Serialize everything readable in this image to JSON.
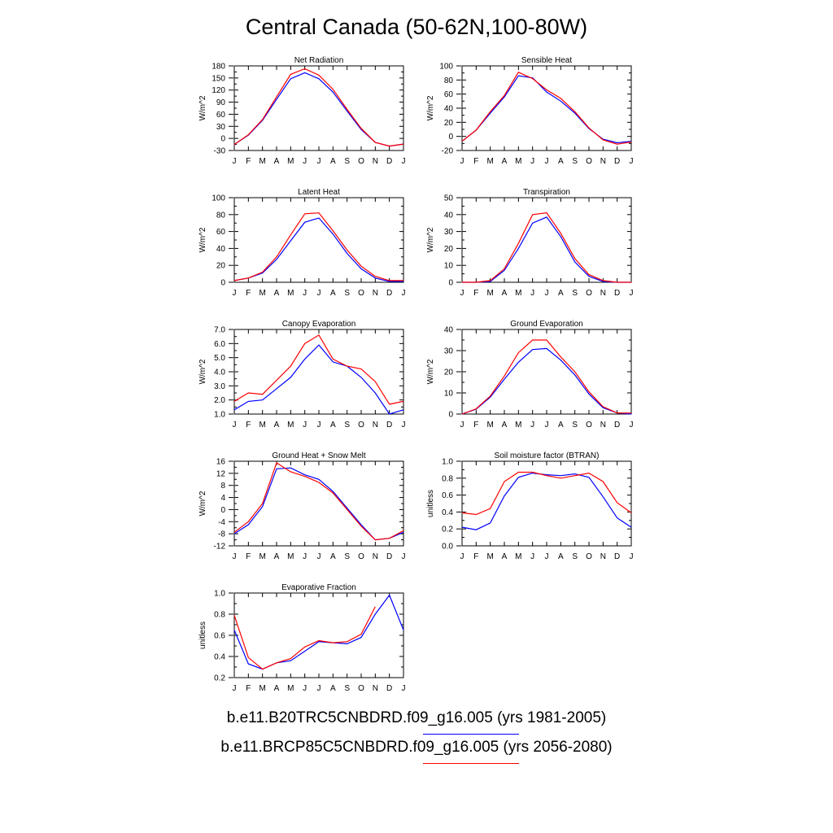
{
  "title": "Central Canada (50-62N,100-80W)",
  "colors": {
    "series_a": "#0000ff",
    "series_b": "#ff0000"
  },
  "legend": [
    {
      "label": "b.e11.B20TRC5CNBDRD.f09_g16.005 (yrs 1981-2005)",
      "color": "#0000ff"
    },
    {
      "label": "b.e11.BRCP85C5CNBDRD.f09_g16.005 (yrs 2056-2080)",
      "color": "#ff0000"
    }
  ],
  "chart_data": [
    {
      "type": "line",
      "title": "Net Radiation",
      "ylabel": "W/m^2",
      "x": [
        "J",
        "F",
        "M",
        "A",
        "M",
        "J",
        "J",
        "A",
        "S",
        "O",
        "N",
        "D",
        "J"
      ],
      "ylim": [
        -30,
        180
      ],
      "yticks": [
        -30,
        0,
        30,
        60,
        90,
        120,
        150,
        180
      ],
      "ytick_labels": [
        "-30",
        "0",
        "30",
        "60",
        "90",
        "120",
        "150",
        "180"
      ],
      "series": [
        {
          "color": "#0000ff",
          "values": [
            -15,
            8,
            45,
            97,
            148,
            163,
            148,
            115,
            68,
            22,
            -10,
            -19,
            -14
          ]
        },
        {
          "color": "#ff0000",
          "values": [
            -15,
            9,
            47,
            103,
            159,
            173,
            157,
            122,
            72,
            25,
            -10,
            -19,
            -14
          ]
        }
      ]
    },
    {
      "type": "line",
      "title": "Sensible Heat",
      "ylabel": "W/m^2",
      "x": [
        "J",
        "F",
        "M",
        "A",
        "M",
        "J",
        "J",
        "A",
        "S",
        "O",
        "N",
        "D",
        "J"
      ],
      "ylim": [
        -20,
        100
      ],
      "yticks": [
        -20,
        0,
        20,
        40,
        60,
        80,
        100
      ],
      "ytick_labels": [
        "-20",
        "0",
        "20",
        "40",
        "60",
        "80",
        "100"
      ],
      "series": [
        {
          "color": "#0000ff",
          "values": [
            -7,
            9,
            33,
            56,
            86,
            83,
            63,
            50,
            33,
            11,
            -4,
            -9,
            -7
          ]
        },
        {
          "color": "#ff0000",
          "values": [
            -7,
            9,
            35,
            58,
            91,
            82,
            66,
            54,
            35,
            12,
            -5,
            -11,
            -8
          ]
        }
      ]
    },
    {
      "type": "line",
      "title": "Latent Heat",
      "ylabel": "W/m^2",
      "x": [
        "J",
        "F",
        "M",
        "A",
        "M",
        "J",
        "J",
        "A",
        "S",
        "O",
        "N",
        "D",
        "J"
      ],
      "ylim": [
        0,
        100
      ],
      "yticks": [
        0,
        20,
        40,
        60,
        80,
        100
      ],
      "ytick_labels": [
        "0",
        "20",
        "40",
        "60",
        "80",
        "100"
      ],
      "series": [
        {
          "color": "#0000ff",
          "values": [
            2,
            5,
            11,
            27,
            49,
            71,
            76,
            57,
            34,
            16,
            5,
            1,
            1
          ]
        },
        {
          "color": "#ff0000",
          "values": [
            2,
            5,
            12,
            30,
            56,
            81,
            82,
            61,
            38,
            19,
            7,
            2,
            2
          ]
        }
      ]
    },
    {
      "type": "line",
      "title": "Transpiration",
      "ylabel": "W/m^2",
      "x": [
        "J",
        "F",
        "M",
        "A",
        "M",
        "J",
        "J",
        "A",
        "S",
        "O",
        "N",
        "D",
        "J"
      ],
      "ylim": [
        0,
        50
      ],
      "yticks": [
        0,
        10,
        20,
        30,
        40,
        50
      ],
      "ytick_labels": [
        "0",
        "10",
        "20",
        "30",
        "40",
        "50"
      ],
      "series": [
        {
          "color": "#0000ff",
          "values": [
            0,
            0,
            0.5,
            7,
            20,
            35,
            38.5,
            27,
            12,
            3.5,
            0.5,
            0,
            0
          ]
        },
        {
          "color": "#ff0000",
          "values": [
            0,
            0,
            1,
            8,
            23,
            40,
            41,
            29,
            14,
            4.5,
            1,
            0,
            0
          ]
        }
      ]
    },
    {
      "type": "line",
      "title": "Canopy Evaporation",
      "ylabel": "W/m^2",
      "x": [
        "J",
        "F",
        "M",
        "A",
        "M",
        "J",
        "J",
        "A",
        "S",
        "O",
        "N",
        "D",
        "J"
      ],
      "ylim": [
        1.0,
        7.0
      ],
      "yticks": [
        1.0,
        2.0,
        3.0,
        4.0,
        5.0,
        6.0,
        7.0
      ],
      "ytick_labels": [
        "1.0",
        "2.0",
        "3.0",
        "4.0",
        "5.0",
        "6.0",
        "7.0"
      ],
      "series": [
        {
          "color": "#0000ff",
          "values": [
            1.3,
            1.9,
            2.0,
            2.8,
            3.6,
            4.9,
            5.9,
            4.7,
            4.4,
            3.6,
            2.5,
            1.0,
            1.3
          ]
        },
        {
          "color": "#ff0000",
          "values": [
            1.9,
            2.5,
            2.4,
            3.4,
            4.4,
            6.0,
            6.6,
            4.9,
            4.4,
            4.2,
            3.3,
            1.7,
            1.9
          ]
        }
      ]
    },
    {
      "type": "line",
      "title": "Ground Evaporation",
      "ylabel": "W/m^2",
      "x": [
        "J",
        "F",
        "M",
        "A",
        "M",
        "J",
        "J",
        "A",
        "S",
        "O",
        "N",
        "D",
        "J"
      ],
      "ylim": [
        0,
        40
      ],
      "yticks": [
        0,
        10,
        20,
        30,
        40
      ],
      "ytick_labels": [
        "0",
        "10",
        "20",
        "30",
        "40"
      ],
      "series": [
        {
          "color": "#0000ff",
          "values": [
            0,
            2.3,
            8,
            16.5,
            24.5,
            30.5,
            31,
            25.5,
            18.5,
            9.5,
            3,
            0.5,
            0
          ]
        },
        {
          "color": "#ff0000",
          "values": [
            0,
            2.5,
            8.5,
            18,
            29,
            35,
            35,
            27,
            20,
            10.5,
            3.5,
            0.5,
            0.5
          ]
        }
      ]
    },
    {
      "type": "line",
      "title": "Ground Heat + Snow Melt",
      "ylabel": "W/m^2",
      "x": [
        "J",
        "F",
        "M",
        "A",
        "M",
        "J",
        "J",
        "A",
        "S",
        "O",
        "N",
        "D",
        "J"
      ],
      "ylim": [
        -12,
        16
      ],
      "yticks": [
        -12,
        -8,
        -4,
        0,
        4,
        8,
        12,
        16
      ],
      "ytick_labels": [
        "-12",
        "-8",
        "-4",
        "0",
        "4",
        "8",
        "12",
        "16"
      ],
      "series": [
        {
          "color": "#0000ff",
          "values": [
            -8,
            -5,
            1,
            13.5,
            13.8,
            11.5,
            10,
            6,
            0.5,
            -5,
            -10,
            -9.5,
            -7.5
          ]
        },
        {
          "color": "#ff0000",
          "values": [
            -7.5,
            -4,
            2,
            15.5,
            12.5,
            11,
            9,
            5.5,
            0,
            -5.5,
            -10,
            -9.5,
            -7
          ]
        }
      ]
    },
    {
      "type": "line",
      "title": "Soil moisture factor (BTRAN)",
      "ylabel": "unitless",
      "x": [
        "J",
        "F",
        "M",
        "A",
        "M",
        "J",
        "J",
        "A",
        "S",
        "O",
        "N",
        "D",
        "J"
      ],
      "ylim": [
        0.0,
        1.0
      ],
      "yticks": [
        0.0,
        0.2,
        0.4,
        0.6,
        0.8,
        1.0
      ],
      "ytick_labels": [
        "0.0",
        "0.2",
        "0.4",
        "0.6",
        "0.8",
        "1.0"
      ],
      "series": [
        {
          "color": "#0000ff",
          "values": [
            0.22,
            0.19,
            0.27,
            0.59,
            0.81,
            0.86,
            0.84,
            0.83,
            0.85,
            0.81,
            0.58,
            0.33,
            0.22
          ]
        },
        {
          "color": "#ff0000",
          "values": [
            0.39,
            0.37,
            0.44,
            0.76,
            0.87,
            0.87,
            0.83,
            0.8,
            0.83,
            0.86,
            0.76,
            0.51,
            0.39
          ]
        }
      ]
    },
    {
      "type": "line",
      "title": "Evaporative Fraction",
      "ylabel": "unitless",
      "x": [
        "J",
        "F",
        "M",
        "A",
        "M",
        "J",
        "J",
        "A",
        "S",
        "O",
        "N",
        "D",
        "J"
      ],
      "ylim": [
        0.2,
        1.0
      ],
      "yticks": [
        0.2,
        0.4,
        0.6,
        0.8,
        1.0
      ],
      "ytick_labels": [
        "0.2",
        "0.4",
        "0.6",
        "0.8",
        "1.0"
      ],
      "series": [
        {
          "color": "#0000ff",
          "values": [
            0.65,
            0.33,
            0.28,
            0.34,
            0.36,
            0.45,
            0.54,
            0.53,
            0.52,
            0.58,
            0.8,
            0.98,
            0.65
          ]
        },
        {
          "color": "#ff0000",
          "values": [
            0.79,
            0.39,
            0.28,
            0.34,
            0.38,
            0.49,
            0.55,
            0.53,
            0.54,
            0.61,
            0.87,
            null,
            null
          ]
        }
      ]
    }
  ]
}
